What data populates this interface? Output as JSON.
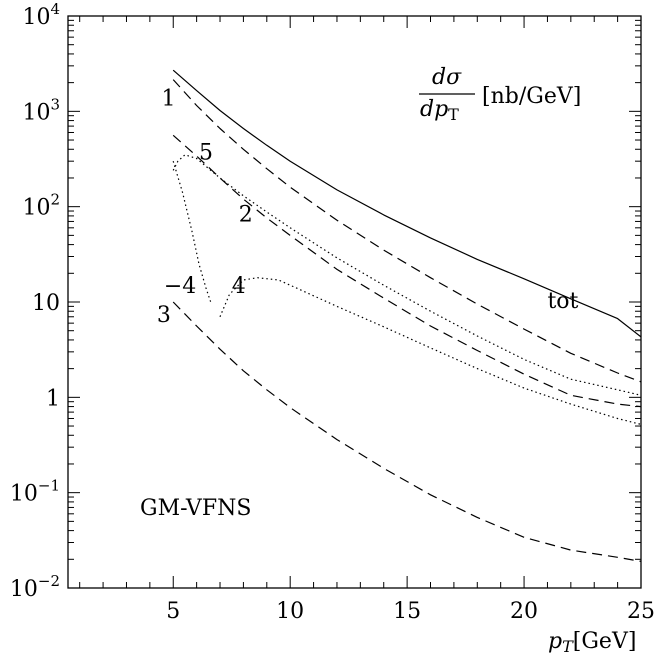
{
  "chart_data": {
    "type": "line",
    "title": "",
    "xlabel": "p_T [GeV]",
    "ylabel": "",
    "xlim": [
      0.5,
      25
    ],
    "ylim": [
      0.01,
      10000
    ],
    "yscale": "log",
    "grid": false,
    "legend": "none",
    "x_ticks": [
      5,
      10,
      15,
      20,
      25
    ],
    "x_tick_labels": [
      "5",
      "10",
      "15",
      "20",
      "25"
    ],
    "y_ticks": [
      0.01,
      0.1,
      1,
      10,
      100,
      1000,
      10000
    ],
    "y_tick_labels": [
      {
        "base": "10",
        "exp": "−2"
      },
      {
        "base": "10",
        "exp": "−1"
      },
      {
        "base": "1",
        "exp": ""
      },
      {
        "base": "10",
        "exp": ""
      },
      {
        "base": "10",
        "exp": "2"
      },
      {
        "base": "10",
        "exp": "3"
      },
      {
        "base": "10",
        "exp": "4"
      }
    ],
    "annotations": {
      "quantity_num": "dσ",
      "quantity_den": "dp",
      "quantity_den_sub": "T",
      "quantity_unit": "[nb/GeV]",
      "scheme": "GM-VFNS"
    },
    "series": [
      {
        "name": "tot",
        "style": "solid",
        "x": [
          5,
          6,
          7,
          8,
          9,
          10,
          12,
          14,
          16,
          18,
          20,
          22,
          24,
          25
        ],
        "y": [
          2700,
          1650,
          1020,
          660,
          440,
          300,
          150,
          82,
          47,
          28,
          17.5,
          10.8,
          6.7,
          4.3
        ]
      },
      {
        "name": "1",
        "style": "dashed",
        "x": [
          5,
          6,
          7,
          8,
          9,
          10,
          12,
          14,
          16,
          18,
          20,
          22,
          24,
          25
        ],
        "y": [
          2150,
          1150,
          660,
          400,
          250,
          160,
          72,
          35,
          18,
          9.5,
          5.2,
          2.9,
          1.8,
          1.45
        ]
      },
      {
        "name": "5",
        "style": "dotted",
        "x": [
          5,
          5.2,
          5.5,
          6,
          7,
          8,
          9,
          10,
          12,
          14,
          16,
          18,
          20,
          22,
          24,
          25
        ],
        "y": [
          240,
          300,
          350,
          320,
          200,
          130,
          88,
          60,
          29,
          15,
          8,
          4.4,
          2.5,
          1.55,
          1.2,
          1.05
        ]
      },
      {
        "name": "2",
        "style": "dashed",
        "x": [
          5,
          6,
          7,
          8,
          9,
          10,
          12,
          14,
          16,
          18,
          20,
          22,
          24,
          25
        ],
        "y": [
          560,
          340,
          200,
          120,
          76,
          50,
          22,
          11,
          5.6,
          3.1,
          1.75,
          1.05,
          0.85,
          0.8
        ]
      },
      {
        "name": "−4",
        "style": "dotted",
        "x": [
          5,
          5.4,
          5.8,
          6.1,
          6.4,
          6.6
        ],
        "y": [
          300,
          140,
          55,
          25,
          14,
          10
        ]
      },
      {
        "name": "4",
        "style": "dotted",
        "x": [
          7,
          7.4,
          8,
          8.6,
          9.5,
          10,
          12,
          14,
          16,
          18,
          20,
          22,
          24,
          25
        ],
        "y": [
          7,
          12,
          17,
          18,
          17,
          15,
          9,
          5.5,
          3.3,
          2,
          1.25,
          0.85,
          0.6,
          0.52
        ]
      },
      {
        "name": "3",
        "style": "dashed",
        "x": [
          5,
          6,
          7,
          8,
          9,
          10,
          12,
          14,
          16,
          18,
          20,
          22,
          24,
          25
        ],
        "y": [
          10,
          5.6,
          3.2,
          1.9,
          1.2,
          0.78,
          0.36,
          0.18,
          0.095,
          0.055,
          0.034,
          0.025,
          0.021,
          0.019
        ]
      }
    ],
    "curve_labels": [
      {
        "text": "1",
        "x": 4.5,
        "y": 1400
      },
      {
        "text": "5",
        "x": 6.1,
        "y": 380
      },
      {
        "text": "2",
        "x": 7.8,
        "y": 85
      },
      {
        "text": "−4",
        "x": 4.6,
        "y": 15
      },
      {
        "text": "4",
        "x": 7.5,
        "y": 15
      },
      {
        "text": "3",
        "x": 4.3,
        "y": 7.5
      },
      {
        "text": "tot",
        "x": 21,
        "y": 10.5
      }
    ]
  }
}
